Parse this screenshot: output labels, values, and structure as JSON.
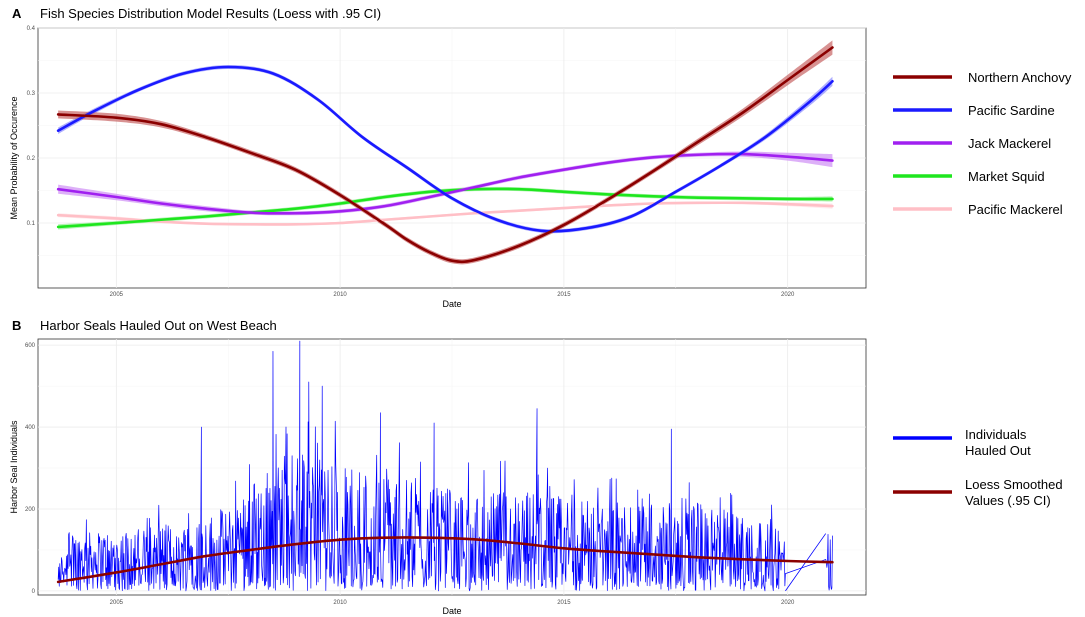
{
  "chart_data": [
    {
      "panel_letter": "A",
      "title": "Fish Species Distribution Model Results (Loess with .95 CI)",
      "type": "line",
      "xlabel": "Date",
      "ylabel": "Mean Probability of Occurence",
      "xlim": [
        2003.25,
        2021.75
      ],
      "ylim": [
        0.0,
        0.4
      ],
      "x_ticks": [
        "2005",
        "2010",
        "2015",
        "2020"
      ],
      "y_ticks": [
        "0.1",
        "0.2",
        "0.3",
        "0.4"
      ],
      "grid": true,
      "legend_position": "right",
      "series": [
        {
          "name": "Northern Anchovy",
          "color": "#8b0000",
          "band_color": "#c86464",
          "x": [
            2003.7,
            2005,
            2006,
            2007,
            2008,
            2009,
            2010,
            2011,
            2011.5,
            2012,
            2012.5,
            2013,
            2014,
            2015,
            2016,
            2017,
            2018,
            2019,
            2020,
            2021
          ],
          "y": [
            0.267,
            0.262,
            0.252,
            0.232,
            0.208,
            0.182,
            0.143,
            0.098,
            0.074,
            0.055,
            0.042,
            0.043,
            0.065,
            0.097,
            0.137,
            0.18,
            0.225,
            0.27,
            0.32,
            0.37
          ],
          "ci": [
            0.006,
            0.006,
            0.005,
            0.004,
            0.004,
            0.004,
            0.004,
            0.004,
            0.004,
            0.004,
            0.004,
            0.004,
            0.004,
            0.004,
            0.004,
            0.004,
            0.005,
            0.006,
            0.008,
            0.011
          ]
        },
        {
          "name": "Pacific Sardine",
          "color": "#1a1aff",
          "band_color": "#8c8cff",
          "x": [
            2003.7,
            2004.5,
            2005.5,
            2006.5,
            2007.5,
            2008.5,
            2009.5,
            2010.5,
            2011.5,
            2012.5,
            2013.5,
            2014.5,
            2015.5,
            2016.5,
            2017.5,
            2018.5,
            2019.5,
            2020.5,
            2021
          ],
          "y": [
            0.242,
            0.272,
            0.305,
            0.33,
            0.34,
            0.33,
            0.29,
            0.232,
            0.185,
            0.138,
            0.105,
            0.088,
            0.092,
            0.11,
            0.148,
            0.188,
            0.232,
            0.287,
            0.318
          ],
          "ci": [
            0.005,
            0.004,
            0.003,
            0.003,
            0.003,
            0.003,
            0.003,
            0.003,
            0.003,
            0.003,
            0.003,
            0.003,
            0.003,
            0.003,
            0.003,
            0.003,
            0.004,
            0.006,
            0.007
          ]
        },
        {
          "name": "Jack Mackerel",
          "color": "#a020f0",
          "band_color": "#cf8ff5",
          "x": [
            2003.7,
            2005,
            2006,
            2007,
            2008,
            2009,
            2010,
            2011,
            2012,
            2013,
            2014,
            2015,
            2016,
            2017,
            2018,
            2019,
            2020,
            2021
          ],
          "y": [
            0.152,
            0.14,
            0.13,
            0.122,
            0.116,
            0.115,
            0.118,
            0.126,
            0.14,
            0.155,
            0.17,
            0.182,
            0.193,
            0.201,
            0.205,
            0.206,
            0.202,
            0.196
          ],
          "ci": [
            0.007,
            0.005,
            0.004,
            0.004,
            0.003,
            0.003,
            0.003,
            0.003,
            0.003,
            0.003,
            0.003,
            0.003,
            0.003,
            0.003,
            0.003,
            0.004,
            0.006,
            0.01
          ]
        },
        {
          "name": "Market Squid",
          "color": "#1ee61e",
          "band_color": "#90ee90",
          "x": [
            2003.7,
            2005,
            2006,
            2007,
            2008,
            2009,
            2010,
            2011,
            2012,
            2013,
            2014,
            2015,
            2016,
            2017,
            2018,
            2019,
            2020,
            2021
          ],
          "y": [
            0.094,
            0.1,
            0.105,
            0.11,
            0.116,
            0.122,
            0.13,
            0.14,
            0.148,
            0.152,
            0.152,
            0.148,
            0.144,
            0.141,
            0.139,
            0.138,
            0.137,
            0.137
          ],
          "ci": [
            0.004,
            0.003,
            0.003,
            0.003,
            0.003,
            0.003,
            0.003,
            0.003,
            0.003,
            0.003,
            0.003,
            0.003,
            0.003,
            0.003,
            0.003,
            0.003,
            0.003,
            0.004
          ]
        },
        {
          "name": "Pacific Mackerel",
          "color": "#ffbfc6",
          "band_color": "#ffe0e4",
          "x": [
            2003.7,
            2005,
            2006,
            2007,
            2008,
            2009,
            2010,
            2011,
            2012,
            2013,
            2014,
            2015,
            2016,
            2017,
            2018,
            2019,
            2020,
            2021
          ],
          "y": [
            0.112,
            0.107,
            0.102,
            0.099,
            0.098,
            0.098,
            0.1,
            0.105,
            0.11,
            0.115,
            0.119,
            0.123,
            0.127,
            0.13,
            0.131,
            0.131,
            0.129,
            0.126
          ],
          "ci": [
            0.003,
            0.003,
            0.002,
            0.002,
            0.002,
            0.002,
            0.002,
            0.002,
            0.002,
            0.002,
            0.002,
            0.002,
            0.002,
            0.002,
            0.002,
            0.002,
            0.003,
            0.004
          ]
        }
      ]
    },
    {
      "panel_letter": "B",
      "title": "Harbor Seals Hauled Out on West Beach",
      "type": "line",
      "xlabel": "Date",
      "ylabel": "Harbor Seal Individuals",
      "xlim": [
        2003.25,
        2021.75
      ],
      "ylim": [
        -10,
        615
      ],
      "x_ticks": [
        "2005",
        "2010",
        "2015",
        "2020"
      ],
      "y_ticks": [
        "0",
        "200",
        "400",
        "600"
      ],
      "grid": true,
      "legend_position": "right",
      "series": [
        {
          "name": "Individuals Hauled Out",
          "color": "#0000ff",
          "x_range": [
            2003.7,
            2021.0
          ],
          "note_peaks": [
            {
              "x": 2006.9,
              "y": 400
            },
            {
              "x": 2008.5,
              "y": 585
            },
            {
              "x": 2009.1,
              "y": 610
            },
            {
              "x": 2009.3,
              "y": 510
            },
            {
              "x": 2009.6,
              "y": 500
            },
            {
              "x": 2010.9,
              "y": 435
            },
            {
              "x": 2012.1,
              "y": 410
            },
            {
              "x": 2014.4,
              "y": 445
            },
            {
              "x": 2017.4,
              "y": 395
            }
          ],
          "envelope": {
            "x": [
              2003.7,
              2004,
              2005,
              2006,
              2006.8,
              2007.5,
              2008.2,
              2009,
              2010,
              2011,
              2012,
              2013,
              2014,
              2015,
              2016,
              2017,
              2018,
              2019,
              2019.7,
              2020.5,
              2021.0
            ],
            "y": [
              80,
              140,
              150,
              160,
              180,
              200,
              290,
              340,
              310,
              290,
              250,
              230,
              250,
              230,
              210,
              240,
              220,
              190,
              170,
              20,
              140
            ]
          }
        },
        {
          "name": "Loess Smoothed\nValues (.95 CI)",
          "color": "#8b0000",
          "x": [
            2003.7,
            2005,
            2006,
            2007,
            2008,
            2009,
            2010,
            2011,
            2012,
            2013,
            2014,
            2015,
            2016,
            2017,
            2018,
            2019,
            2020,
            2021
          ],
          "y": [
            22,
            45,
            65,
            85,
            100,
            114,
            125,
            130,
            130,
            126,
            116,
            104,
            96,
            89,
            82,
            77,
            73,
            70
          ]
        }
      ]
    }
  ]
}
